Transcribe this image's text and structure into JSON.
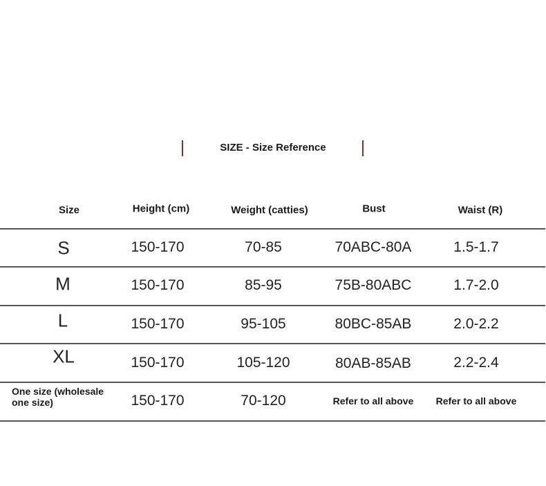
{
  "title": "SIZE - Size Reference",
  "accent_color": "#8b2a2a",
  "headers": [
    "Size",
    "Height (cm)",
    "Weight (catties)",
    "Bust",
    "Waist (R)"
  ],
  "rows": [
    [
      "S",
      "150-170",
      "70-85",
      "70ABC-80A",
      "1.5-1.7"
    ],
    [
      "M",
      "150-170",
      "85-95",
      "75B-80ABC",
      "1.7-2.0"
    ],
    [
      "L",
      "150-170",
      "95-105",
      "80BC-85AB",
      "2.0-2.2"
    ],
    [
      "XL",
      "150-170",
      "105-120",
      "80AB-85AB",
      "2.2-2.4"
    ],
    [
      "One size (wholesale one size)",
      "150-170",
      "70-120",
      "Refer to all above",
      "Refer to all above"
    ]
  ]
}
